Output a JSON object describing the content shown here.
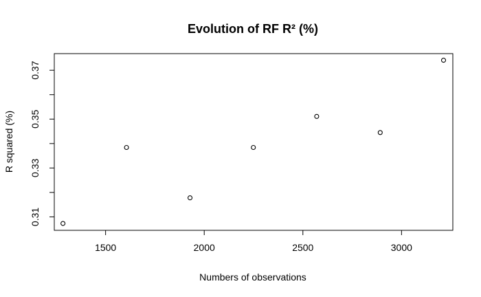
{
  "chart_data": {
    "type": "scatter",
    "title": "Evolution of RF R² (%)",
    "xlabel": "Numbers of observations",
    "ylabel": "R squared (%)",
    "xlim": [
      1240,
      3260
    ],
    "ylim": [
      0.3045,
      0.3768
    ],
    "x_ticks": [
      1500,
      2000,
      2500,
      3000
    ],
    "y_ticks": [
      0.31,
      0.33,
      0.35,
      0.37
    ],
    "x_tick_labels": [
      "1500",
      "2000",
      "2500",
      "3000"
    ],
    "y_tick_labels": [
      "0.31",
      "0.33",
      "0.35",
      "0.37"
    ],
    "y_minor_ticks": [
      0.31,
      0.32,
      0.33,
      0.34,
      0.35,
      0.36,
      0.37
    ],
    "grid": false,
    "legend": "none",
    "marker": "open-circle",
    "x": [
      1284,
      1606,
      1928,
      2249,
      2570,
      2892,
      3213
    ],
    "y": [
      0.3073,
      0.3384,
      0.3178,
      0.3384,
      0.3511,
      0.3445,
      0.3741
    ]
  }
}
